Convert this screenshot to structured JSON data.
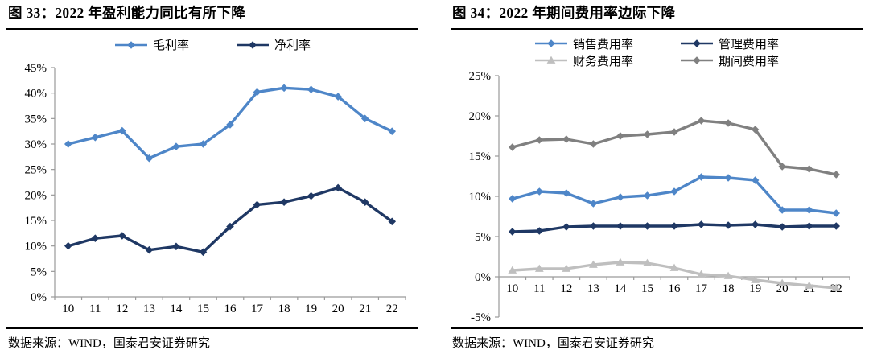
{
  "colors": {
    "light_blue": "#4E86C8",
    "dark_navy": "#1F3864",
    "light_gray": "#BFBFBF",
    "mid_gray": "#808080",
    "axis": "#9A9A9A",
    "rule_black": "#000000"
  },
  "figures": [
    {
      "title": "图 33：2022 年盈利能力同比有所下降",
      "source": "数据来源：WIND，国泰君安证券研究"
    },
    {
      "title": "图 34：2022 年期间费用率边际下降",
      "source": "数据来源：WIND，国泰君安证券研究"
    }
  ],
  "chart_data": [
    {
      "type": "line",
      "title": "图 33：2022 年盈利能力同比有所下降",
      "categories": [
        "10",
        "11",
        "12",
        "13",
        "14",
        "15",
        "16",
        "17",
        "18",
        "19",
        "20",
        "21",
        "22"
      ],
      "series": [
        {
          "name": "毛利率",
          "color": "#4E86C8",
          "marker": "diamond",
          "values": [
            30.0,
            31.3,
            32.6,
            27.2,
            29.5,
            30.0,
            33.8,
            40.2,
            41.0,
            40.7,
            39.3,
            35.0,
            32.5
          ]
        },
        {
          "name": "净利率",
          "color": "#1F3864",
          "marker": "diamond",
          "values": [
            10.0,
            11.5,
            12.0,
            9.2,
            9.9,
            8.8,
            13.8,
            18.1,
            18.6,
            19.8,
            21.4,
            18.6,
            14.8
          ]
        }
      ],
      "ylim": [
        0,
        45
      ],
      "ytick_step": 5,
      "ytick_format": "percent",
      "xlabel": "",
      "ylabel": "",
      "grid": false,
      "legend_position": "top"
    },
    {
      "type": "line",
      "title": "图 34：2022 年期间费用率边际下降",
      "categories": [
        "10",
        "11",
        "12",
        "13",
        "14",
        "15",
        "16",
        "17",
        "18",
        "19",
        "20",
        "21",
        "22"
      ],
      "series": [
        {
          "name": "销售费用率",
          "color": "#4E86C8",
          "marker": "diamond",
          "values": [
            9.7,
            10.6,
            10.4,
            9.1,
            9.9,
            10.1,
            10.6,
            12.4,
            12.3,
            12.0,
            8.3,
            8.3,
            7.9
          ]
        },
        {
          "name": "管理费用率",
          "color": "#1F3864",
          "marker": "diamond",
          "values": [
            5.6,
            5.7,
            6.2,
            6.3,
            6.3,
            6.3,
            6.3,
            6.5,
            6.4,
            6.5,
            6.2,
            6.3,
            6.3
          ]
        },
        {
          "name": "财务费用率",
          "color": "#BFBFBF",
          "marker": "triangle",
          "values": [
            0.8,
            1.0,
            1.0,
            1.5,
            1.8,
            1.7,
            1.1,
            0.3,
            0.1,
            -0.4,
            -0.8,
            -1.1,
            -1.4
          ]
        },
        {
          "name": "期间费用率",
          "color": "#808080",
          "marker": "diamond",
          "values": [
            16.1,
            17.0,
            17.1,
            16.5,
            17.5,
            17.7,
            18.0,
            19.4,
            19.1,
            18.3,
            13.7,
            13.4,
            12.7
          ]
        }
      ],
      "ylim": [
        -5,
        25
      ],
      "ytick_step": 5,
      "ytick_format": "percent",
      "xlabel": "",
      "ylabel": "",
      "grid": false,
      "legend_position": "top"
    }
  ]
}
